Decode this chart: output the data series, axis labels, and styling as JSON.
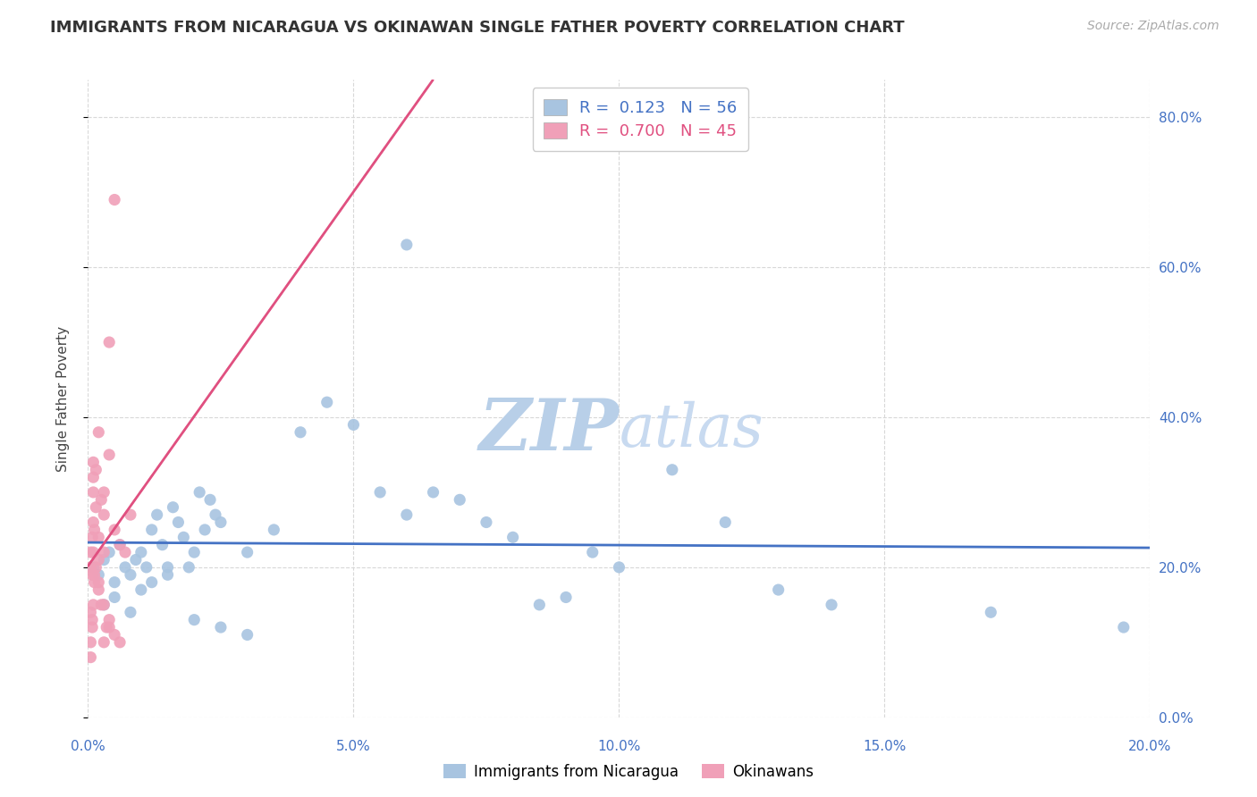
{
  "title": "IMMIGRANTS FROM NICARAGUA VS OKINAWAN SINGLE FATHER POVERTY CORRELATION CHART",
  "source": "Source: ZipAtlas.com",
  "ylabel": "Single Father Poverty",
  "watermark": "ZIPatlas",
  "series": [
    {
      "name": "Immigrants from Nicaragua",
      "R": "0.123",
      "N": 56,
      "line_color": "#4472c4",
      "scatter_color": "#a8c4e0",
      "points_x": [
        0.001,
        0.002,
        0.003,
        0.004,
        0.005,
        0.006,
        0.007,
        0.008,
        0.009,
        0.01,
        0.011,
        0.012,
        0.013,
        0.014,
        0.015,
        0.016,
        0.017,
        0.018,
        0.019,
        0.02,
        0.021,
        0.022,
        0.023,
        0.024,
        0.025,
        0.03,
        0.035,
        0.04,
        0.045,
        0.05,
        0.055,
        0.06,
        0.065,
        0.07,
        0.075,
        0.08,
        0.085,
        0.09,
        0.095,
        0.1,
        0.11,
        0.12,
        0.13,
        0.14,
        0.003,
        0.005,
        0.008,
        0.01,
        0.012,
        0.015,
        0.02,
        0.025,
        0.03,
        0.06,
        0.17,
        0.195
      ],
      "points_y": [
        0.2,
        0.19,
        0.21,
        0.22,
        0.18,
        0.23,
        0.2,
        0.19,
        0.21,
        0.22,
        0.2,
        0.25,
        0.27,
        0.23,
        0.2,
        0.28,
        0.26,
        0.24,
        0.2,
        0.22,
        0.3,
        0.25,
        0.29,
        0.27,
        0.26,
        0.22,
        0.25,
        0.38,
        0.42,
        0.39,
        0.3,
        0.27,
        0.3,
        0.29,
        0.26,
        0.24,
        0.15,
        0.16,
        0.22,
        0.2,
        0.33,
        0.26,
        0.17,
        0.15,
        0.15,
        0.16,
        0.14,
        0.17,
        0.18,
        0.19,
        0.13,
        0.12,
        0.11,
        0.63,
        0.14,
        0.12
      ]
    },
    {
      "name": "Okinawans",
      "R": "0.700",
      "N": 45,
      "line_color": "#e05080",
      "scatter_color": "#f0a0b8",
      "points_x": [
        0.0005,
        0.0005,
        0.0005,
        0.0008,
        0.0008,
        0.0008,
        0.001,
        0.001,
        0.001,
        0.001,
        0.001,
        0.0012,
        0.0012,
        0.0015,
        0.0015,
        0.0015,
        0.002,
        0.002,
        0.002,
        0.002,
        0.0025,
        0.0025,
        0.003,
        0.003,
        0.003,
        0.003,
        0.0035,
        0.004,
        0.004,
        0.004,
        0.005,
        0.005,
        0.006,
        0.006,
        0.007,
        0.008,
        0.0005,
        0.0005,
        0.0008,
        0.001,
        0.0012,
        0.002,
        0.003,
        0.004,
        0.005
      ],
      "points_y": [
        0.2,
        0.22,
        0.14,
        0.19,
        0.24,
        0.13,
        0.26,
        0.3,
        0.22,
        0.32,
        0.34,
        0.18,
        0.25,
        0.28,
        0.2,
        0.33,
        0.21,
        0.17,
        0.24,
        0.38,
        0.15,
        0.29,
        0.27,
        0.3,
        0.22,
        0.1,
        0.12,
        0.35,
        0.5,
        0.12,
        0.25,
        0.11,
        0.23,
        0.1,
        0.22,
        0.27,
        0.08,
        0.1,
        0.12,
        0.15,
        0.19,
        0.18,
        0.15,
        0.13,
        0.69
      ]
    }
  ],
  "xlim": [
    0.0,
    0.2
  ],
  "ylim": [
    0.0,
    0.85
  ],
  "xticks": [
    0.0,
    0.05,
    0.1,
    0.15,
    0.2
  ],
  "yticks": [
    0.0,
    0.2,
    0.4,
    0.6,
    0.8
  ],
  "right_ytick_labels": [
    "0.0%",
    "20.0%",
    "40.0%",
    "60.0%",
    "80.0%"
  ],
  "bottom_xtick_labels": [
    "0.0%",
    "5.0%",
    "10.0%",
    "15.0%",
    "20.0%"
  ],
  "grid_color": "#d8d8d8",
  "background_color": "#ffffff",
  "title_fontsize": 13,
  "source_fontsize": 10,
  "watermark_color": "#ccdcf0",
  "legend_loc": "upper center"
}
